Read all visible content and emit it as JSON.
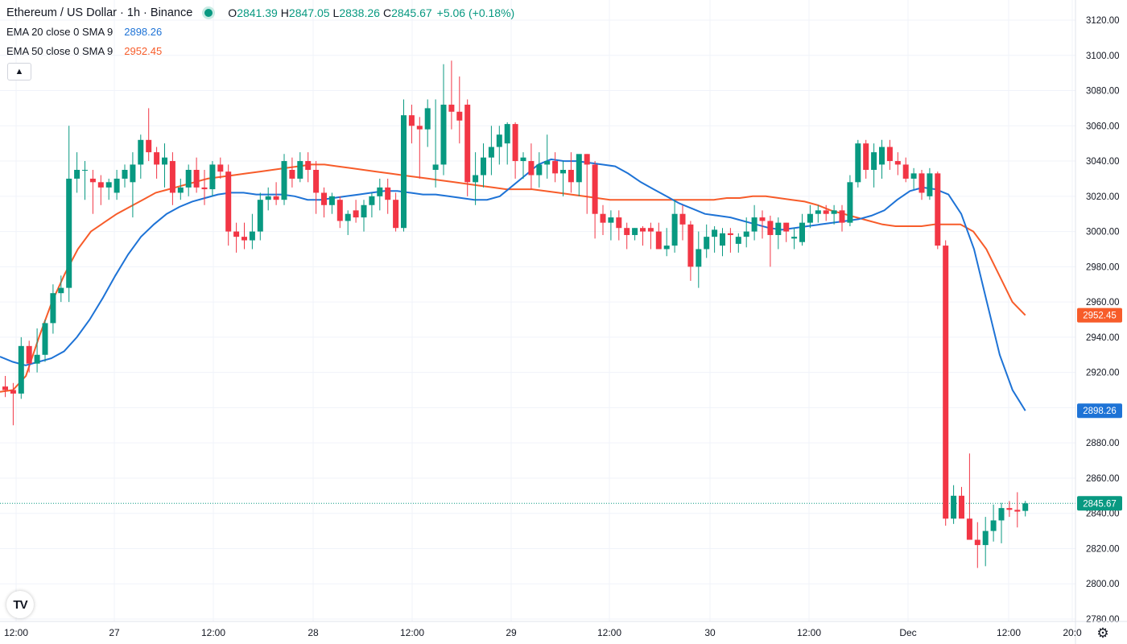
{
  "header": {
    "symbol_title": "Ethereum / US Dollar · 1h · Binance",
    "open_label": "O",
    "open_value": "2841.39",
    "high_label": "H",
    "high_value": "2847.05",
    "low_label": "L",
    "low_value": "2838.26",
    "close_label": "C",
    "close_value": "2845.67",
    "change": "+5.06 (+0.18%)"
  },
  "indicators": [
    {
      "name": "EMA 20 close 0 SMA 9",
      "value": "2898.26",
      "color": "#2962ff"
    },
    {
      "name": "EMA 50 close 0 SMA 9",
      "value": "2952.45",
      "color": "#f7525f"
    }
  ],
  "colors": {
    "up": "#089981",
    "down": "#f23645",
    "ema20": "#1e73d6",
    "ema50": "#f75c2a",
    "grid": "#f0f3fa",
    "axis_text": "#131722"
  },
  "price_axis": {
    "labels": [
      "3120.00",
      "3100.00",
      "3080.00",
      "3060.00",
      "3040.00",
      "3020.00",
      "3000.00",
      "2980.00",
      "2960.00",
      "2940.00",
      "2920.00",
      "2900.00",
      "2880.00",
      "2860.00",
      "2840.00",
      "2820.00",
      "2800.00",
      "2780.00"
    ],
    "badges": [
      {
        "value": "2952.45",
        "color": "#f75c2a"
      },
      {
        "value": "2898.26",
        "color": "#1e73d6"
      },
      {
        "value": "2845.67",
        "color": "#089981"
      }
    ]
  },
  "time_axis": {
    "labels": [
      "12:00",
      "27",
      "12:00",
      "28",
      "12:00",
      "29",
      "12:00",
      "30",
      "12:00",
      "Dec",
      "12:00",
      "20:0"
    ]
  },
  "icons": {
    "collapse": "chevron-up-icon",
    "logo": "tradingview-logo",
    "settings": "gear-icon"
  },
  "logo_text": "TV",
  "chart_data": {
    "type": "candlestick",
    "symbol": "ETH/USD",
    "interval": "1h",
    "ylim": [
      2780,
      3120
    ],
    "last_price": 2845.67,
    "candles": [
      [
        2912,
        2918,
        2906,
        2910
      ],
      [
        2910,
        2914,
        2890,
        2908
      ],
      [
        2908,
        2940,
        2905,
        2935
      ],
      [
        2935,
        2938,
        2920,
        2925
      ],
      [
        2925,
        2945,
        2920,
        2930
      ],
      [
        2930,
        2950,
        2926,
        2948
      ],
      [
        2948,
        2970,
        2942,
        2965
      ],
      [
        2965,
        2975,
        2960,
        2968
      ],
      [
        2968,
        3060,
        2960,
        3030
      ],
      [
        3030,
        3045,
        3022,
        3035
      ],
      [
        3035,
        3040,
        3018,
        3035
      ],
      [
        3030,
        3035,
        3010,
        3028
      ],
      [
        3028,
        3032,
        3015,
        3025
      ],
      [
        3025,
        3030,
        3018,
        3028
      ],
      [
        3022,
        3035,
        3018,
        3030
      ],
      [
        3030,
        3038,
        3025,
        3035
      ],
      [
        3028,
        3045,
        3008,
        3038
      ],
      [
        3038,
        3055,
        3030,
        3052
      ],
      [
        3052,
        3070,
        3040,
        3045
      ],
      [
        3045,
        3048,
        3030,
        3038
      ],
      [
        3038,
        3050,
        3025,
        3042
      ],
      [
        3040,
        3045,
        3015,
        3022
      ],
      [
        3022,
        3030,
        3018,
        3025
      ],
      [
        3025,
        3038,
        3020,
        3035
      ],
      [
        3035,
        3042,
        3022,
        3025
      ],
      [
        3025,
        3035,
        3015,
        3024
      ],
      [
        3024,
        3040,
        3020,
        3038
      ],
      [
        3038,
        3042,
        3030,
        3034
      ],
      [
        3034,
        3038,
        2992,
        3000
      ],
      [
        3000,
        3005,
        2988,
        2997
      ],
      [
        2997,
        3005,
        2990,
        2995
      ],
      [
        2995,
        3010,
        2990,
        3000
      ],
      [
        3000,
        3022,
        2995,
        3018
      ],
      [
        3018,
        3025,
        3012,
        3020
      ],
      [
        3020,
        3028,
        3015,
        3018
      ],
      [
        3018,
        3044,
        3015,
        3040
      ],
      [
        3035,
        3042,
        3025,
        3030
      ],
      [
        3030,
        3045,
        3028,
        3040
      ],
      [
        3040,
        3045,
        3028,
        3035
      ],
      [
        3035,
        3040,
        3010,
        3022
      ],
      [
        3022,
        3025,
        3008,
        3015
      ],
      [
        3015,
        3022,
        3010,
        3020
      ],
      [
        3018,
        3020,
        3002,
        3006
      ],
      [
        3006,
        3012,
        2998,
        3010
      ],
      [
        3012,
        3018,
        3005,
        3008
      ],
      [
        3008,
        3018,
        3000,
        3015
      ],
      [
        3015,
        3022,
        3008,
        3020
      ],
      [
        3020,
        3030,
        3012,
        3025
      ],
      [
        3025,
        3030,
        3010,
        3018
      ],
      [
        3018,
        3022,
        3000,
        3002
      ],
      [
        3002,
        3075,
        3000,
        3066
      ],
      [
        3066,
        3072,
        3050,
        3060
      ],
      [
        3060,
        3065,
        3030,
        3058
      ],
      [
        3058,
        3075,
        3048,
        3070
      ],
      [
        3035,
        3075,
        3025,
        3038
      ],
      [
        3038,
        3095,
        3032,
        3072
      ],
      [
        3072,
        3097,
        3058,
        3068
      ],
      [
        3068,
        3088,
        3050,
        3063
      ],
      [
        3072,
        3075,
        3020,
        3028
      ],
      [
        3028,
        3045,
        3015,
        3032
      ],
      [
        3032,
        3050,
        3025,
        3042
      ],
      [
        3042,
        3060,
        3032,
        3048
      ],
      [
        3048,
        3060,
        3038,
        3055
      ],
      [
        3050,
        3062,
        3038,
        3061
      ],
      [
        3061,
        3062,
        3030,
        3040
      ],
      [
        3040,
        3045,
        3030,
        3042
      ],
      [
        3040,
        3050,
        3024,
        3032
      ],
      [
        3032,
        3045,
        3025,
        3038
      ],
      [
        3038,
        3055,
        3030,
        3040
      ],
      [
        3040,
        3045,
        3028,
        3033
      ],
      [
        3033,
        3040,
        3020,
        3035
      ],
      [
        3035,
        3045,
        3022,
        3028
      ],
      [
        3028,
        3042,
        3020,
        3044
      ],
      [
        3044,
        3044,
        3010,
        3038
      ],
      [
        3038,
        3040,
        2996,
        3010
      ],
      [
        3010,
        3015,
        2998,
        3005
      ],
      [
        3005,
        3012,
        2995,
        3008
      ],
      [
        3008,
        3012,
        2995,
        3002
      ],
      [
        3002,
        3005,
        2990,
        2998
      ],
      [
        2998,
        3002,
        2995,
        3002
      ],
      [
        3002,
        3003,
        2992,
        3000
      ],
      [
        3002,
        3005,
        2990,
        3000
      ],
      [
        3000,
        3005,
        2992,
        2990
      ],
      [
        2990,
        3002,
        2986,
        2992
      ],
      [
        2992,
        3018,
        2988,
        3010
      ],
      [
        3010,
        3015,
        2995,
        3004
      ],
      [
        3004,
        3006,
        2972,
        2980
      ],
      [
        2980,
        3000,
        2968,
        2990
      ],
      [
        2990,
        3004,
        2985,
        2997
      ],
      [
        2997,
        3003,
        2988,
        3001
      ],
      [
        2992,
        3002,
        2986,
        2999
      ],
      [
        2999,
        3002,
        2988,
        2998
      ],
      [
        2993,
        2999,
        2988,
        2997
      ],
      [
        2997,
        3008,
        2991,
        3000
      ],
      [
        3000,
        3015,
        2995,
        3008
      ],
      [
        3008,
        3012,
        2996,
        3006
      ],
      [
        3006,
        3009,
        2980,
        2998
      ],
      [
        2998,
        3008,
        2990,
        3005
      ],
      [
        3005,
        3005,
        2994,
        3000
      ],
      [
        2996,
        3002,
        2990,
        2997
      ],
      [
        2994,
        3010,
        2992,
        3005
      ],
      [
        3005,
        3015,
        3002,
        3010
      ],
      [
        3010,
        3015,
        3005,
        3012
      ],
      [
        3012,
        3015,
        3006,
        3010
      ],
      [
        3010,
        3015,
        3004,
        3012
      ],
      [
        3012,
        3015,
        3000,
        3005
      ],
      [
        3005,
        3032,
        3003,
        3028
      ],
      [
        3028,
        3052,
        3025,
        3050
      ],
      [
        3050,
        3052,
        3030,
        3035
      ],
      [
        3035,
        3050,
        3025,
        3045
      ],
      [
        3038,
        3052,
        3030,
        3048
      ],
      [
        3048,
        3052,
        3035,
        3040
      ],
      [
        3040,
        3045,
        3032,
        3038
      ],
      [
        3038,
        3042,
        3028,
        3030
      ],
      [
        3030,
        3036,
        3024,
        3033
      ],
      [
        3033,
        3035,
        3018,
        3022
      ],
      [
        3020,
        3036,
        3018,
        3033
      ],
      [
        3033,
        3034,
        2990,
        2992
      ],
      [
        2992,
        2995,
        2833,
        2837
      ],
      [
        2837,
        2856,
        2834,
        2850
      ],
      [
        2850,
        2855,
        2838,
        2837
      ],
      [
        2837,
        2874,
        2826,
        2825
      ],
      [
        2825,
        2835,
        2809,
        2822
      ],
      [
        2822,
        2838,
        2810,
        2830
      ],
      [
        2830,
        2845,
        2824,
        2836
      ],
      [
        2836,
        2846,
        2823,
        2843
      ],
      [
        2843,
        2847,
        2838,
        2842
      ],
      [
        2842,
        2852,
        2832,
        2841
      ],
      [
        2841.39,
        2847.05,
        2838.26,
        2845.67
      ]
    ],
    "ema20": [
      2929,
      2926,
      2924,
      2926,
      2928,
      2932,
      2940,
      2950,
      2962,
      2975,
      2987,
      2997,
      3004,
      3010,
      3014,
      3017,
      3019,
      3021,
      3022,
      3022,
      3021,
      3021,
      3021,
      3020,
      3018,
      3018,
      3019,
      3020,
      3021,
      3022,
      3023,
      3023,
      3022,
      3021,
      3021,
      3020,
      3019,
      3018,
      3018,
      3020,
      3026,
      3032,
      3038,
      3041,
      3040,
      3040,
      3039,
      3038,
      3037,
      3033,
      3028,
      3024,
      3020,
      3016,
      3013,
      3010,
      3009,
      3008,
      3006,
      3004,
      3002,
      3001,
      3002,
      3003,
      3004,
      3005,
      3006,
      3007,
      3009,
      3012,
      3018,
      3023,
      3025,
      3024,
      3021,
      3010,
      2990,
      2960,
      2930,
      2910,
      2898.26
    ],
    "ema50": [
      2909,
      2910,
      2918,
      2940,
      2960,
      2976,
      2990,
      3000,
      3005,
      3010,
      3014,
      3018,
      3022,
      3024,
      3026,
      3028,
      3030,
      3031,
      3032,
      3033,
      3034,
      3035,
      3036,
      3037,
      3038,
      3038,
      3037,
      3036,
      3035,
      3034,
      3033,
      3032,
      3031,
      3030,
      3029,
      3028,
      3027,
      3026,
      3025,
      3024,
      3024,
      3024,
      3023,
      3022,
      3021,
      3020,
      3019,
      3018,
      3018,
      3018,
      3018,
      3018,
      3018,
      3018,
      3018,
      3018,
      3019,
      3019,
      3020,
      3020,
      3019,
      3018,
      3017,
      3015,
      3012,
      3010,
      3008,
      3006,
      3004,
      3003,
      3003,
      3003,
      3004,
      3004,
      3004,
      3000,
      2990,
      2975,
      2960,
      2952.45
    ]
  }
}
